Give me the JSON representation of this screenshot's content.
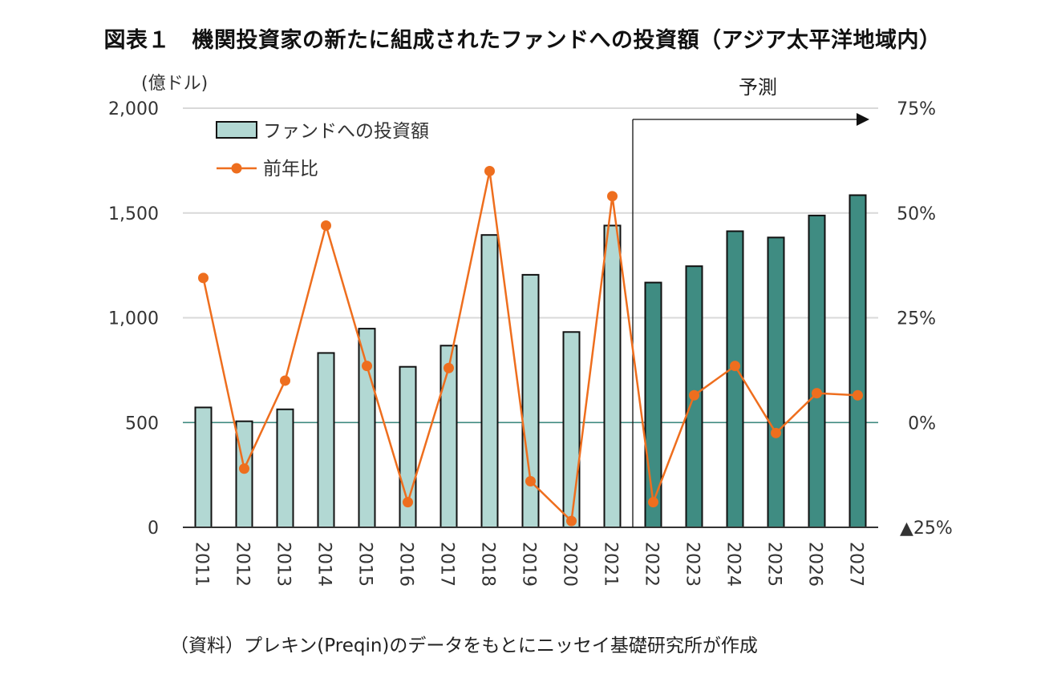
{
  "title": "図表１　機関投資家の新たに組成されたファンドへの投資額（アジア太平洋地域内）",
  "source_note": "（資料）プレキン(Preqin)のデータをもとにニッセイ基礎研究所が作成",
  "colors": {
    "bar_actual": "#b2d8d3",
    "bar_forecast": "#3f8c82",
    "line": "#ee6e1e",
    "bar_stroke": "#111111",
    "grid": "#d9d9d9",
    "zero_line": "#3f8c82"
  },
  "chart_data": {
    "type": "bar",
    "categories": [
      "2011",
      "2012",
      "2013",
      "2014",
      "2015",
      "2016",
      "2017",
      "2018",
      "2019",
      "2020",
      "2021",
      "2022",
      "2023",
      "2024",
      "2025",
      "2026",
      "2027"
    ],
    "series": [
      {
        "name": "ファンドへの投資額",
        "type": "bar",
        "axis": "left",
        "values": [
          572,
          506,
          563,
          832,
          948,
          766,
          867,
          1395,
          1205,
          932,
          1440,
          1168,
          1246,
          1413,
          1383,
          1488,
          1585
        ]
      },
      {
        "name": "前年比",
        "type": "line",
        "axis": "right",
        "values": [
          34.5,
          -11,
          10,
          47,
          13.5,
          -19,
          13,
          60,
          -14,
          -23.5,
          54,
          -19,
          6.5,
          13.5,
          -2.5,
          7,
          6.5
        ]
      }
    ],
    "forecast_start_index": 11,
    "forecast_label": "予測",
    "y_left": {
      "unit_label": "(億ドル)",
      "ylim": [
        0,
        2000
      ],
      "ticks": [
        0,
        500,
        1000,
        1500,
        2000
      ],
      "tick_labels": [
        "0",
        "500",
        "1,000",
        "1,500",
        "2,000"
      ]
    },
    "y_right": {
      "ylim": [
        -25,
        75
      ],
      "ticks": [
        -25,
        0,
        25,
        50,
        75
      ],
      "tick_labels": [
        "▲25%",
        "0%",
        "25%",
        "50%",
        "75%"
      ]
    },
    "grid": true,
    "legend_position": "top-left"
  }
}
